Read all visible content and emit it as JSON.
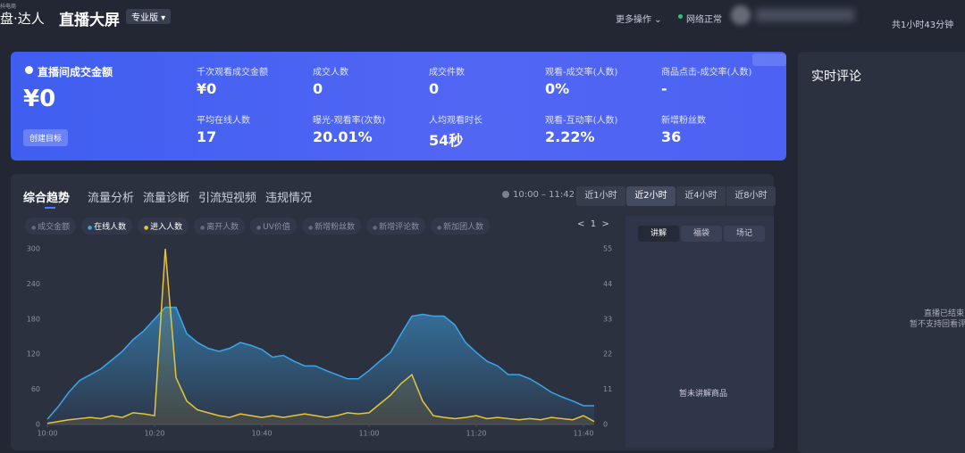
{
  "header": {
    "brand_sub": "抖电商",
    "brand": "盘·达人",
    "title": "直播大屏",
    "badge": "专业版",
    "more": "更多操作",
    "network": "网络正常",
    "duration": "共1小时43分钟"
  },
  "summary": {
    "main_label": "直播间成交金额",
    "main_value": "¥0",
    "goal_button": "创建目标",
    "metrics": [
      {
        "label": "千次观看成交金额",
        "value": "¥0"
      },
      {
        "label": "成交人数",
        "value": "0"
      },
      {
        "label": "成交件数",
        "value": "0"
      },
      {
        "label": "观看-成交率(人数)",
        "value": "0%"
      },
      {
        "label": "商品点击-成交率(人数)",
        "value": "-"
      },
      {
        "label": "平均在线人数",
        "value": "17"
      },
      {
        "label": "曝光-观看率(次数)",
        "value": "20.01%"
      },
      {
        "label": "人均观看时长",
        "value": "54秒"
      },
      {
        "label": "观看-互动率(人数)",
        "value": "2.22%"
      },
      {
        "label": "新增粉丝数",
        "value": "36"
      }
    ]
  },
  "trend_panel": {
    "tabs": [
      "综合趋势",
      "流量分析",
      "流量诊断",
      "引流短视频",
      "违规情况"
    ],
    "time_range": "10:00 – 11:42",
    "ranges": [
      "近1小时",
      "近2小时",
      "近4小时",
      "近8小时"
    ],
    "other_metrics": [
      "成交金额",
      "离开人数",
      "UV价值",
      "新增粉丝数",
      "新增评论数",
      "新加团人数"
    ],
    "page": 1,
    "side_tabs": [
      "讲解",
      "福袋",
      "场记"
    ],
    "side_empty": "暂未讲解商品"
  },
  "comments": {
    "title": "实时评论",
    "status": "直播已结束",
    "note": "暂不支持回看评论"
  },
  "chart_data": {
    "type": "line",
    "x": [
      "10:00",
      null,
      null,
      null,
      null,
      null,
      null,
      null,
      null,
      null,
      "10:20",
      null,
      null,
      null,
      null,
      null,
      null,
      null,
      null,
      null,
      "10:40",
      null,
      null,
      null,
      null,
      null,
      null,
      null,
      null,
      null,
      "11:00",
      null,
      null,
      null,
      null,
      null,
      null,
      null,
      null,
      null,
      "11:20",
      null,
      null,
      null,
      null,
      null,
      null,
      null,
      null,
      null,
      "11:40",
      null
    ],
    "series": [
      {
        "name": "在线人数",
        "color": "#3ba6ea",
        "values": [
          9,
          30,
          55,
          75,
          85,
          95,
          110,
          125,
          145,
          160,
          180,
          200,
          200,
          155,
          140,
          130,
          125,
          130,
          140,
          135,
          128,
          115,
          118,
          108,
          100,
          100,
          92,
          85,
          78,
          78,
          92,
          108,
          123,
          155,
          185,
          188,
          185,
          185,
          170,
          140,
          123,
          108,
          100,
          85,
          85,
          78,
          67,
          55,
          47,
          40,
          32,
          32
        ]
      },
      {
        "name": "进入人数",
        "color": "#e6c53c",
        "values": [
          2,
          5,
          8,
          10,
          12,
          10,
          15,
          12,
          20,
          18,
          15,
          300,
          80,
          40,
          25,
          20,
          15,
          12,
          18,
          15,
          12,
          15,
          12,
          15,
          18,
          15,
          12,
          15,
          20,
          18,
          20,
          35,
          50,
          70,
          85,
          40,
          15,
          12,
          10,
          12,
          15,
          10,
          12,
          10,
          8,
          10,
          8,
          12,
          10,
          8,
          15,
          5
        ]
      }
    ],
    "ylim": [
      0,
      300
    ],
    "yticks": [
      0,
      60,
      120,
      180,
      240,
      300
    ],
    "y2lim": [
      0,
      55
    ],
    "y2ticks": [
      0,
      11,
      22,
      33,
      44,
      55
    ]
  }
}
